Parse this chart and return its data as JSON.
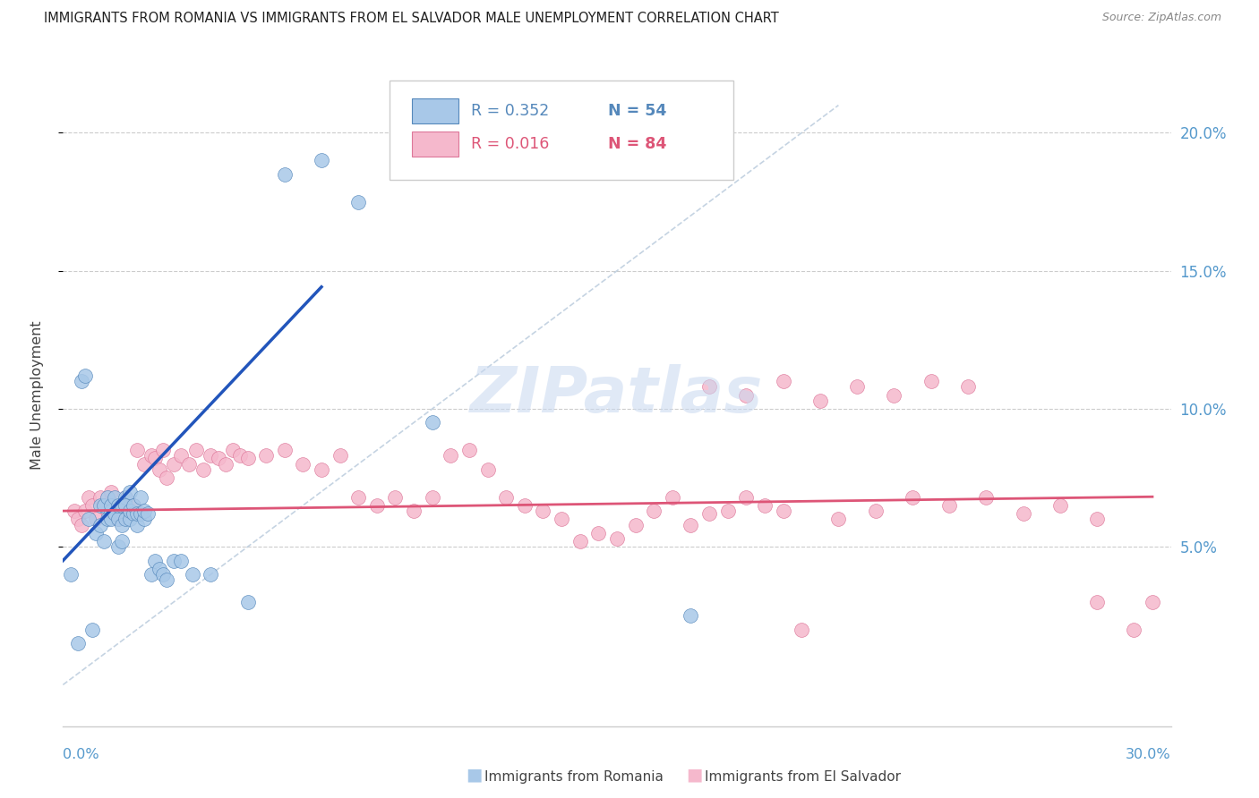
{
  "title": "IMMIGRANTS FROM ROMANIA VS IMMIGRANTS FROM EL SALVADOR MALE UNEMPLOYMENT CORRELATION CHART",
  "source": "Source: ZipAtlas.com",
  "ylabel": "Male Unemployment",
  "y_ticks": [
    0.05,
    0.1,
    0.15,
    0.2
  ],
  "y_tick_labels": [
    "5.0%",
    "10.0%",
    "15.0%",
    "20.0%"
  ],
  "xlim": [
    0.0,
    0.3
  ],
  "ylim": [
    -0.015,
    0.225
  ],
  "romania_color": "#a8c8e8",
  "romania_edge": "#5588bb",
  "el_salvador_color": "#f5b8cc",
  "el_salvador_edge": "#dd7799",
  "romania_trend_color": "#2255bb",
  "el_salvador_trend_color": "#dd5577",
  "diag_color": "#bbccdd",
  "watermark": "ZIPatlas",
  "legend_romania_R": "R = 0.352",
  "legend_romania_N": "N = 54",
  "legend_salvador_R": "R = 0.016",
  "legend_salvador_N": "N = 84",
  "romania_scatter_x": [
    0.002,
    0.004,
    0.005,
    0.006,
    0.007,
    0.008,
    0.009,
    0.01,
    0.01,
    0.011,
    0.011,
    0.012,
    0.012,
    0.013,
    0.013,
    0.013,
    0.014,
    0.014,
    0.015,
    0.015,
    0.015,
    0.016,
    0.016,
    0.016,
    0.017,
    0.017,
    0.017,
    0.018,
    0.018,
    0.018,
    0.019,
    0.019,
    0.02,
    0.02,
    0.021,
    0.021,
    0.022,
    0.022,
    0.023,
    0.024,
    0.025,
    0.026,
    0.027,
    0.028,
    0.03,
    0.032,
    0.035,
    0.04,
    0.05,
    0.06,
    0.07,
    0.08,
    0.1,
    0.17
  ],
  "romania_scatter_y": [
    0.04,
    0.015,
    0.11,
    0.112,
    0.06,
    0.02,
    0.055,
    0.065,
    0.058,
    0.065,
    0.052,
    0.06,
    0.068,
    0.063,
    0.06,
    0.065,
    0.068,
    0.062,
    0.05,
    0.06,
    0.065,
    0.052,
    0.058,
    0.065,
    0.06,
    0.068,
    0.065,
    0.06,
    0.063,
    0.07,
    0.062,
    0.065,
    0.058,
    0.062,
    0.068,
    0.062,
    0.06,
    0.063,
    0.062,
    0.04,
    0.045,
    0.042,
    0.04,
    0.038,
    0.045,
    0.045,
    0.04,
    0.04,
    0.03,
    0.185,
    0.19,
    0.175,
    0.095,
    0.025
  ],
  "el_salvador_scatter_x": [
    0.003,
    0.004,
    0.005,
    0.006,
    0.007,
    0.008,
    0.009,
    0.01,
    0.011,
    0.012,
    0.013,
    0.014,
    0.015,
    0.016,
    0.017,
    0.018,
    0.019,
    0.02,
    0.022,
    0.024,
    0.025,
    0.026,
    0.027,
    0.028,
    0.03,
    0.032,
    0.034,
    0.036,
    0.038,
    0.04,
    0.042,
    0.044,
    0.046,
    0.048,
    0.05,
    0.055,
    0.06,
    0.065,
    0.07,
    0.075,
    0.08,
    0.085,
    0.09,
    0.095,
    0.1,
    0.105,
    0.11,
    0.115,
    0.12,
    0.125,
    0.13,
    0.135,
    0.14,
    0.145,
    0.15,
    0.155,
    0.16,
    0.165,
    0.17,
    0.175,
    0.18,
    0.185,
    0.19,
    0.195,
    0.2,
    0.21,
    0.22,
    0.23,
    0.24,
    0.25,
    0.26,
    0.27,
    0.28,
    0.29,
    0.175,
    0.185,
    0.195,
    0.205,
    0.215,
    0.225,
    0.235,
    0.245,
    0.28,
    0.295
  ],
  "el_salvador_scatter_y": [
    0.063,
    0.06,
    0.058,
    0.063,
    0.068,
    0.065,
    0.06,
    0.068,
    0.065,
    0.063,
    0.07,
    0.065,
    0.06,
    0.065,
    0.068,
    0.063,
    0.065,
    0.085,
    0.08,
    0.083,
    0.082,
    0.078,
    0.085,
    0.075,
    0.08,
    0.083,
    0.08,
    0.085,
    0.078,
    0.083,
    0.082,
    0.08,
    0.085,
    0.083,
    0.082,
    0.083,
    0.085,
    0.08,
    0.078,
    0.083,
    0.068,
    0.065,
    0.068,
    0.063,
    0.068,
    0.083,
    0.085,
    0.078,
    0.068,
    0.065,
    0.063,
    0.06,
    0.052,
    0.055,
    0.053,
    0.058,
    0.063,
    0.068,
    0.058,
    0.062,
    0.063,
    0.068,
    0.065,
    0.063,
    0.02,
    0.06,
    0.063,
    0.068,
    0.065,
    0.068,
    0.062,
    0.065,
    0.06,
    0.02,
    0.108,
    0.105,
    0.11,
    0.103,
    0.108,
    0.105,
    0.11,
    0.108,
    0.03,
    0.03
  ]
}
